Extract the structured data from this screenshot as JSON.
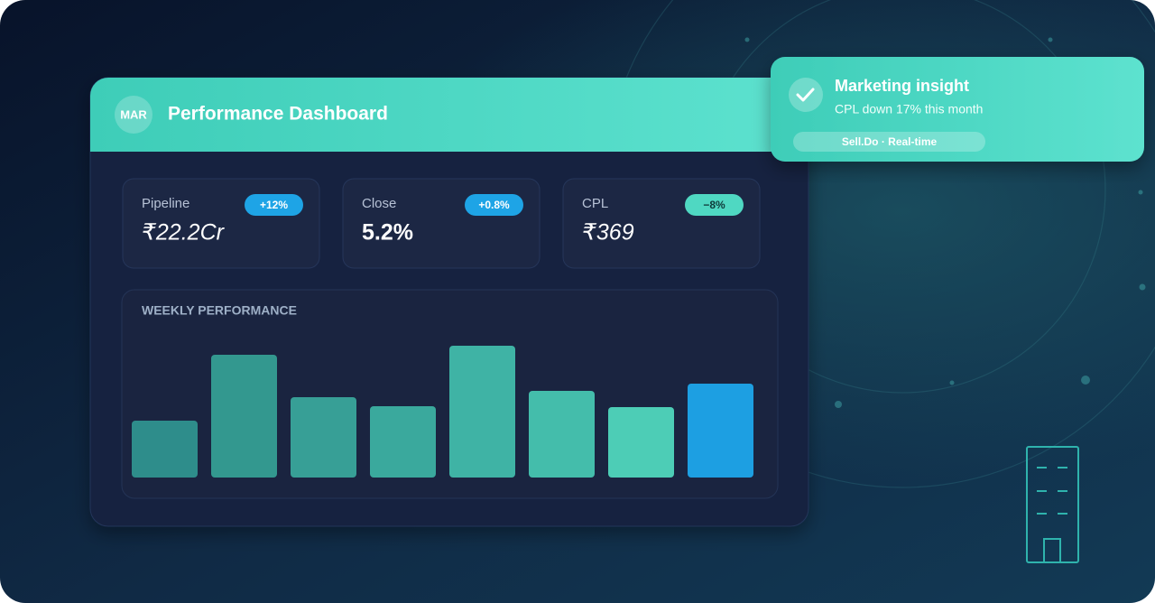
{
  "header": {
    "avatar": "MAR",
    "title": "Performance Dashboard"
  },
  "kpis": [
    {
      "label": "Pipeline",
      "value": "₹22.2Cr",
      "change": "+12%"
    },
    {
      "label": "Close",
      "value": "5.2%",
      "change": "+0.8%"
    },
    {
      "label": "CPL",
      "value": "₹369",
      "change": "−8%"
    }
  ],
  "notification": {
    "title": "Marketing insight",
    "message": "CPL down 17% this month",
    "tag": "Sell.Do · Real-time"
  },
  "chart_data": {
    "type": "bar",
    "title": "WEEKLY PERFORMANCE",
    "values": [
      63,
      136,
      89,
      79,
      146,
      96,
      78,
      104
    ],
    "colors": [
      "#2e8d8b",
      "#33988f",
      "#379f96",
      "#3aa99d",
      "#3fb3a5",
      "#44bdab",
      "#4dcdb6",
      "#1d9fe2"
    ],
    "ylim": [
      0,
      170
    ]
  }
}
